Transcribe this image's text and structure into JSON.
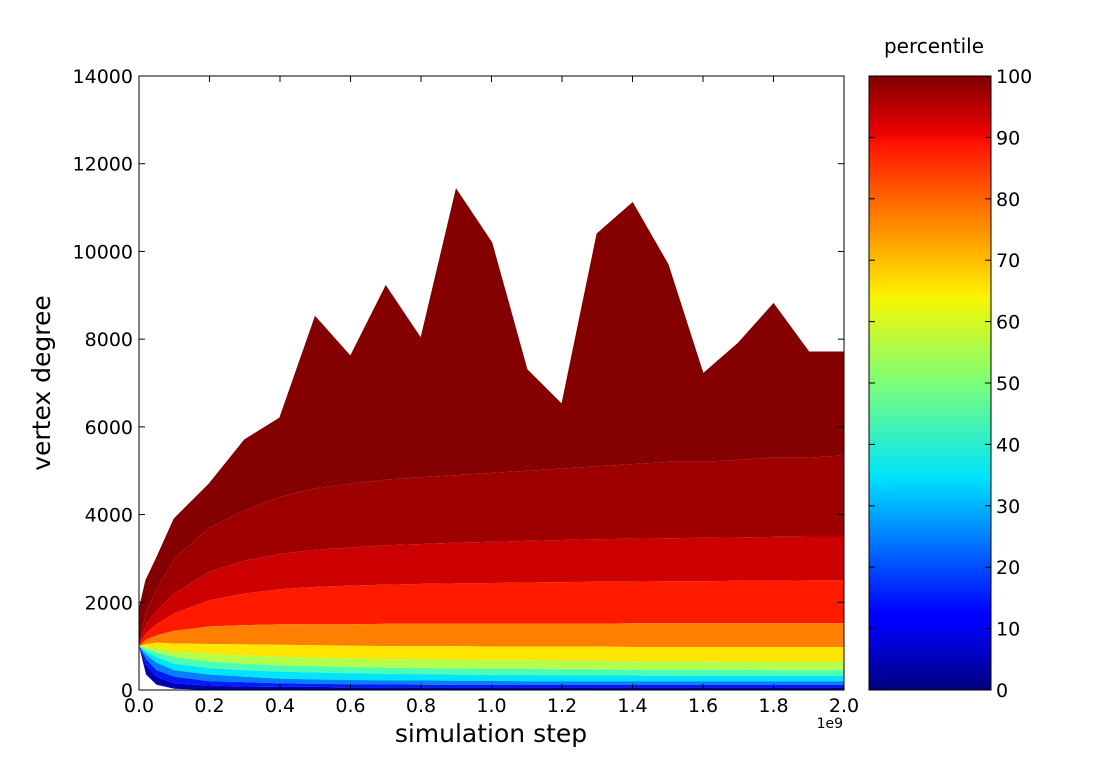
{
  "chart_data": {
    "type": "area",
    "xlabel": "simulation step",
    "ylabel": "vertex degree",
    "x_offset_label": "1e9",
    "xlim": [
      0.0,
      2.0
    ],
    "ylim": [
      0,
      14000
    ],
    "x_ticks": [
      "0.0",
      "0.2",
      "0.4",
      "0.6",
      "0.8",
      "1.0",
      "1.2",
      "1.4",
      "1.6",
      "1.8",
      "2.0"
    ],
    "y_ticks": [
      "0",
      "2000",
      "4000",
      "6000",
      "8000",
      "10000",
      "12000",
      "14000"
    ],
    "grid": false,
    "colorbar": {
      "label": "percentile",
      "range": [
        0,
        100
      ],
      "ticks": [
        "0",
        "10",
        "20",
        "30",
        "40",
        "50",
        "60",
        "70",
        "80",
        "90",
        "100"
      ],
      "colormap": "jet"
    },
    "x": [
      0.0,
      0.02,
      0.05,
      0.1,
      0.2,
      0.3,
      0.4,
      0.5,
      0.6,
      0.7,
      0.8,
      0.9,
      1.0,
      1.1,
      1.2,
      1.3,
      1.4,
      1.5,
      1.6,
      1.7,
      1.8,
      1.9,
      2.0
    ],
    "series": [
      {
        "percentile": 0,
        "values": [
          1000,
          350,
          120,
          30,
          0,
          0,
          0,
          0,
          0,
          0,
          0,
          0,
          0,
          0,
          0,
          0,
          0,
          0,
          0,
          0,
          0,
          0,
          0
        ]
      },
      {
        "percentile": 10,
        "values": [
          1000,
          560,
          300,
          150,
          100,
          80,
          70,
          70,
          60,
          60,
          60,
          60,
          60,
          60,
          60,
          60,
          60,
          60,
          60,
          60,
          60,
          60,
          60
        ]
      },
      {
        "percentile": 20,
        "values": [
          1000,
          700,
          450,
          300,
          200,
          180,
          150,
          140,
          130,
          130,
          120,
          120,
          120,
          120,
          120,
          120,
          120,
          120,
          120,
          120,
          120,
          120,
          120
        ]
      },
      {
        "percentile": 30,
        "values": [
          1000,
          800,
          620,
          450,
          350,
          300,
          260,
          240,
          230,
          220,
          220,
          210,
          210,
          200,
          200,
          200,
          200,
          200,
          200,
          200,
          200,
          200,
          200
        ]
      },
      {
        "percentile": 40,
        "values": [
          1000,
          880,
          750,
          600,
          500,
          450,
          420,
          400,
          380,
          370,
          360,
          350,
          340,
          340,
          330,
          330,
          330,
          320,
          320,
          320,
          320,
          320,
          320
        ]
      },
      {
        "percentile": 50,
        "values": [
          1000,
          930,
          860,
          750,
          650,
          600,
          560,
          540,
          520,
          510,
          500,
          490,
          480,
          480,
          470,
          470,
          460,
          460,
          460,
          460,
          450,
          450,
          450
        ]
      },
      {
        "percentile": 60,
        "values": [
          1000,
          980,
          960,
          880,
          820,
          790,
          760,
          740,
          720,
          700,
          700,
          690,
          680,
          680,
          670,
          670,
          660,
          660,
          660,
          650,
          650,
          650,
          650
        ]
      },
      {
        "percentile": 70,
        "values": [
          1000,
          1050,
          1080,
          1060,
          1050,
          1040,
          1030,
          1020,
          1010,
          1000,
          1000,
          1000,
          990,
          990,
          990,
          990,
          980,
          980,
          980,
          980,
          980,
          980,
          980
        ]
      },
      {
        "percentile": 80,
        "values": [
          1000,
          1150,
          1250,
          1350,
          1450,
          1480,
          1500,
          1500,
          1500,
          1510,
          1510,
          1510,
          1510,
          1510,
          1510,
          1510,
          1520,
          1520,
          1520,
          1520,
          1520,
          1520,
          1520
        ]
      },
      {
        "percentile": 90,
        "values": [
          1000,
          1300,
          1500,
          1750,
          2050,
          2200,
          2300,
          2350,
          2380,
          2400,
          2420,
          2430,
          2440,
          2450,
          2460,
          2470,
          2470,
          2480,
          2480,
          2490,
          2490,
          2500,
          2500
        ]
      },
      {
        "percentile": 95,
        "values": [
          1000,
          1500,
          1800,
          2200,
          2700,
          2950,
          3100,
          3200,
          3250,
          3300,
          3330,
          3360,
          3380,
          3400,
          3420,
          3440,
          3450,
          3460,
          3470,
          3480,
          3490,
          3500,
          3500
        ]
      },
      {
        "percentile": 99,
        "values": [
          1000,
          1800,
          2300,
          3000,
          3700,
          4100,
          4400,
          4600,
          4700,
          4800,
          4850,
          4900,
          4950,
          5000,
          5050,
          5100,
          5150,
          5200,
          5200,
          5250,
          5300,
          5300,
          5350
        ]
      },
      {
        "percentile": 100,
        "values": [
          1800,
          2500,
          3000,
          3900,
          4700,
          5700,
          6200,
          8500,
          7600,
          9200,
          8000,
          11400,
          10200,
          7300,
          6500,
          10400,
          11100,
          9700,
          7200,
          7900,
          8800,
          7700,
          7700
        ]
      }
    ]
  }
}
